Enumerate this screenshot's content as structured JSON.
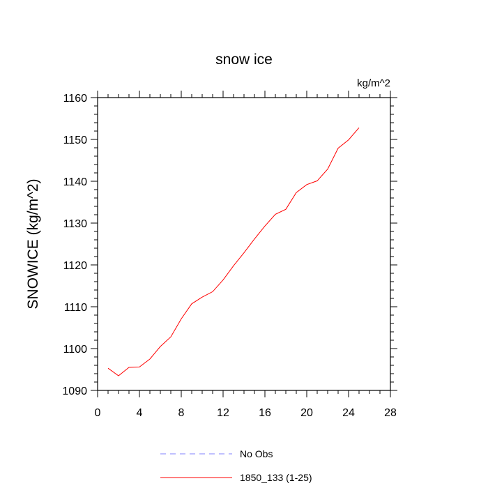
{
  "chart_data": {
    "type": "line",
    "title": "snow ice",
    "units": "kg/m^2",
    "xlabel": "",
    "ylabel": "SNOWICE  (kg/m^2)",
    "xlim": [
      0,
      28
    ],
    "ylim": [
      1090,
      1160
    ],
    "xticks": [
      0,
      4,
      8,
      12,
      16,
      20,
      24,
      28
    ],
    "yticks": [
      1090,
      1100,
      1110,
      1120,
      1130,
      1140,
      1150,
      1160
    ],
    "xtick_labels": [
      "0",
      "4",
      "8",
      "12",
      "16",
      "20",
      "24",
      "28"
    ],
    "ytick_labels": [
      "1090",
      "1100",
      "1110",
      "1120",
      "1130",
      "1140",
      "1150",
      "1160"
    ],
    "grid": false,
    "legend_position": "bottom",
    "series": [
      {
        "name": "No Obs",
        "color": "#8080ff",
        "dash": "dashed",
        "x": [],
        "y": []
      },
      {
        "name": "1850_133 (1-25)",
        "color": "#ff0000",
        "dash": "solid",
        "x": [
          1,
          2,
          3,
          4,
          5,
          6,
          7,
          8,
          9,
          10,
          11,
          12,
          13,
          14,
          15,
          16,
          17,
          18,
          19,
          20,
          21,
          22,
          23,
          24,
          25
        ],
        "y": [
          1095.3,
          1093.5,
          1095.5,
          1095.6,
          1097.5,
          1100.5,
          1102.8,
          1107.1,
          1110.7,
          1112.3,
          1113.6,
          1116.4,
          1119.8,
          1122.9,
          1126.2,
          1129.3,
          1132.1,
          1133.3,
          1137.3,
          1139.2,
          1140.1,
          1142.9,
          1147.9,
          1149.9,
          1152.8
        ]
      }
    ]
  }
}
